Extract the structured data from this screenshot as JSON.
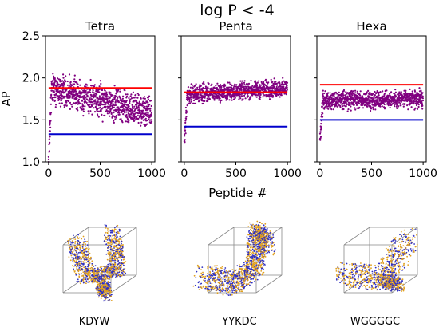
{
  "figure": {
    "suptitle": "log P < -4",
    "xlabel": "Peptide #",
    "ylabel": "AP"
  },
  "chart_data": [
    {
      "type": "scatter",
      "title": "Tetra",
      "xlim": [
        -30,
        1030
      ],
      "ylim": [
        1.0,
        2.5
      ],
      "xticks": [
        0,
        500,
        1000
      ],
      "yticks": [
        1.0,
        1.5,
        2.0,
        2.5
      ],
      "colors": {
        "points": "#800080",
        "upper": "#ff0000",
        "lower": "#0000cc"
      },
      "points": {
        "n": 1000,
        "early_min": 1.0,
        "band_start": 1.88,
        "band_end": 1.58,
        "spread": 0.13
      },
      "hlines": [
        {
          "y": 1.88,
          "color": "#ff0000"
        },
        {
          "y": 1.33,
          "color": "#0000cc"
        }
      ],
      "peptide": {
        "sequence": "KDYW",
        "shape": "tetra"
      }
    },
    {
      "type": "scatter",
      "title": "Penta",
      "xlim": [
        -30,
        1030
      ],
      "ylim": [
        1.0,
        2.5
      ],
      "xticks": [
        0,
        500,
        1000
      ],
      "yticks": [
        1.0,
        1.5,
        2.0,
        2.5
      ],
      "colors": {
        "points": "#800080",
        "upper": "#ff0000",
        "lower": "#0000cc"
      },
      "points": {
        "n": 1000,
        "early_min": 1.2,
        "band_start": 1.8,
        "band_end": 1.88,
        "spread": 0.07
      },
      "hlines": [
        {
          "y": 1.83,
          "color": "#ff0000"
        },
        {
          "y": 1.42,
          "color": "#0000cc"
        }
      ],
      "peptide": {
        "sequence": "YYKDC",
        "shape": "penta"
      }
    },
    {
      "type": "scatter",
      "title": "Hexa",
      "xlim": [
        -30,
        1030
      ],
      "ylim": [
        1.0,
        2.5
      ],
      "xticks": [
        0,
        500,
        1000
      ],
      "yticks": [
        1.0,
        1.5,
        2.0,
        2.5
      ],
      "colors": {
        "points": "#800080",
        "upper": "#ff0000",
        "lower": "#0000cc"
      },
      "points": {
        "n": 1000,
        "early_min": 1.25,
        "band_start": 1.73,
        "band_end": 1.75,
        "spread": 0.07
      },
      "hlines": [
        {
          "y": 1.92,
          "color": "#ff0000"
        },
        {
          "y": 1.5,
          "color": "#0000cc"
        }
      ],
      "peptide": {
        "sequence": "WGGGGC",
        "shape": "hexa"
      }
    }
  ]
}
